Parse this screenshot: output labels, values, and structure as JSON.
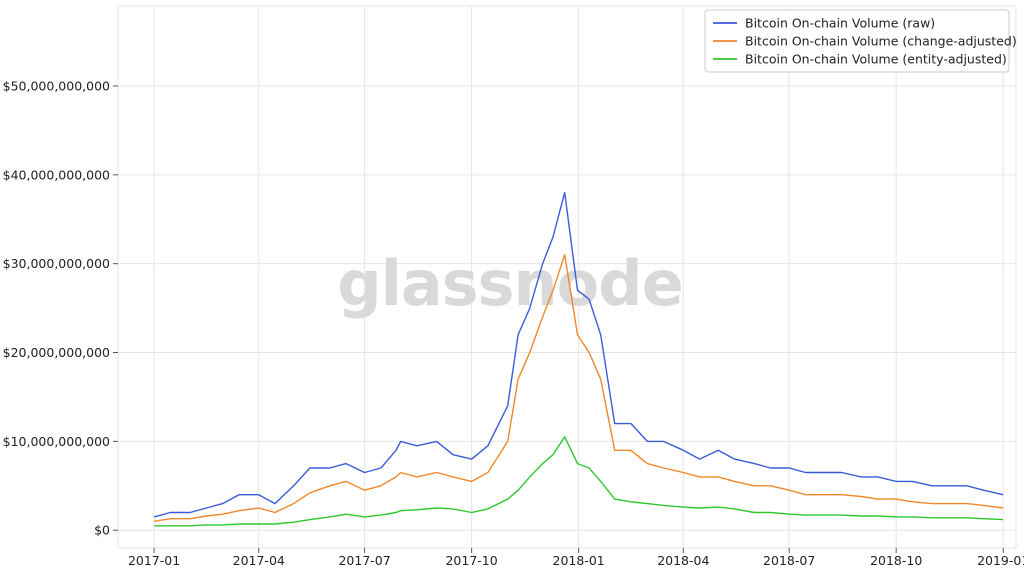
{
  "chart_data": {
    "type": "line",
    "title": "",
    "xlabel": "",
    "ylabel": "",
    "watermark": "glassnode",
    "grid": true,
    "legend_position": "top-right",
    "x_range": [
      "2016-12-01",
      "2019-01-12"
    ],
    "ylim": [
      -2000000000,
      59000000000
    ],
    "x_ticks": [
      {
        "date": "2017-01-01",
        "label": "2017-01"
      },
      {
        "date": "2017-04-01",
        "label": "2017-04"
      },
      {
        "date": "2017-07-01",
        "label": "2017-07"
      },
      {
        "date": "2017-10-01",
        "label": "2017-10"
      },
      {
        "date": "2018-01-01",
        "label": "2018-01"
      },
      {
        "date": "2018-04-01",
        "label": "2018-04"
      },
      {
        "date": "2018-07-01",
        "label": "2018-07"
      },
      {
        "date": "2018-10-01",
        "label": "2018-10"
      },
      {
        "date": "2019-01-01",
        "label": "2019-01"
      }
    ],
    "y_ticks": [
      {
        "value": 0,
        "label": "$0"
      },
      {
        "value": 10000000000,
        "label": "$10,000,000,000"
      },
      {
        "value": 20000000000,
        "label": "$20,000,000,000"
      },
      {
        "value": 30000000000,
        "label": "$30,000,000,000"
      },
      {
        "value": 40000000000,
        "label": "$40,000,000,000"
      },
      {
        "value": 50000000000,
        "label": "$50,000,000,000"
      }
    ],
    "series": [
      {
        "name": "Bitcoin On-chain Volume (raw)",
        "color": "#3b5bd9",
        "x": [
          "2017-01-01",
          "2017-01-15",
          "2017-02-01",
          "2017-02-15",
          "2017-03-01",
          "2017-03-15",
          "2017-04-01",
          "2017-04-15",
          "2017-05-01",
          "2017-05-15",
          "2017-06-01",
          "2017-06-15",
          "2017-07-01",
          "2017-07-15",
          "2017-07-28",
          "2017-08-01",
          "2017-08-15",
          "2017-09-01",
          "2017-09-15",
          "2017-10-01",
          "2017-10-15",
          "2017-11-01",
          "2017-11-10",
          "2017-11-20",
          "2017-12-01",
          "2017-12-10",
          "2017-12-20",
          "2017-12-31",
          "2018-01-10",
          "2018-01-20",
          "2018-02-01",
          "2018-02-15",
          "2018-03-01",
          "2018-03-15",
          "2018-04-01",
          "2018-04-15",
          "2018-05-01",
          "2018-05-15",
          "2018-06-01",
          "2018-06-15",
          "2018-07-01",
          "2018-07-15",
          "2018-08-01",
          "2018-08-15",
          "2018-09-01",
          "2018-09-15",
          "2018-10-01",
          "2018-10-15",
          "2018-11-01",
          "2018-11-15",
          "2018-12-01",
          "2018-12-15",
          "2019-01-01"
        ],
        "values": [
          1500000000,
          2000000000,
          2000000000,
          2500000000,
          3000000000,
          4000000000,
          4000000000,
          3000000000,
          5000000000,
          7000000000,
          7000000000,
          7500000000,
          6500000000,
          7000000000,
          9000000000,
          10000000000,
          9500000000,
          10000000000,
          8500000000,
          8000000000,
          9500000000,
          14000000000,
          22000000000,
          25000000000,
          30000000000,
          33000000000,
          38000000000,
          27000000000,
          26000000000,
          22000000000,
          12000000000,
          12000000000,
          10000000000,
          10000000000,
          9000000000,
          8000000000,
          9000000000,
          8000000000,
          7500000000,
          7000000000,
          7000000000,
          6500000000,
          6500000000,
          6500000000,
          6000000000,
          6000000000,
          5500000000,
          5500000000,
          5000000000,
          5000000000,
          5000000000,
          4500000000,
          4000000000
        ]
      },
      {
        "name": "Bitcoin On-chain Volume (change-adjusted)",
        "color": "#f0872b",
        "x": [
          "2017-01-01",
          "2017-01-15",
          "2017-02-01",
          "2017-02-15",
          "2017-03-01",
          "2017-03-15",
          "2017-04-01",
          "2017-04-15",
          "2017-05-01",
          "2017-05-15",
          "2017-06-01",
          "2017-06-15",
          "2017-07-01",
          "2017-07-15",
          "2017-07-28",
          "2017-08-01",
          "2017-08-15",
          "2017-09-01",
          "2017-09-15",
          "2017-10-01",
          "2017-10-15",
          "2017-11-01",
          "2017-11-10",
          "2017-11-20",
          "2017-12-01",
          "2017-12-10",
          "2017-12-20",
          "2017-12-31",
          "2018-01-10",
          "2018-01-20",
          "2018-02-01",
          "2018-02-15",
          "2018-03-01",
          "2018-03-15",
          "2018-04-01",
          "2018-04-15",
          "2018-05-01",
          "2018-05-15",
          "2018-06-01",
          "2018-06-15",
          "2018-07-01",
          "2018-07-15",
          "2018-08-01",
          "2018-08-15",
          "2018-09-01",
          "2018-09-15",
          "2018-10-01",
          "2018-10-15",
          "2018-11-01",
          "2018-11-15",
          "2018-12-01",
          "2018-12-15",
          "2019-01-01"
        ],
        "values": [
          1000000000,
          1300000000,
          1300000000,
          1600000000,
          1800000000,
          2200000000,
          2500000000,
          2000000000,
          3000000000,
          4200000000,
          5000000000,
          5500000000,
          4500000000,
          5000000000,
          6000000000,
          6500000000,
          6000000000,
          6500000000,
          6000000000,
          5500000000,
          6500000000,
          10000000000,
          17000000000,
          20000000000,
          24000000000,
          27000000000,
          31000000000,
          22000000000,
          20000000000,
          17000000000,
          9000000000,
          9000000000,
          7500000000,
          7000000000,
          6500000000,
          6000000000,
          6000000000,
          5500000000,
          5000000000,
          5000000000,
          4500000000,
          4000000000,
          4000000000,
          4000000000,
          3800000000,
          3500000000,
          3500000000,
          3200000000,
          3000000000,
          3000000000,
          3000000000,
          2800000000,
          2500000000
        ]
      },
      {
        "name": "Bitcoin On-chain Volume (entity-adjusted)",
        "color": "#2ec72e",
        "x": [
          "2017-01-01",
          "2017-01-15",
          "2017-02-01",
          "2017-02-15",
          "2017-03-01",
          "2017-03-15",
          "2017-04-01",
          "2017-04-15",
          "2017-05-01",
          "2017-05-15",
          "2017-06-01",
          "2017-06-15",
          "2017-07-01",
          "2017-07-15",
          "2017-07-28",
          "2017-08-01",
          "2017-08-15",
          "2017-09-01",
          "2017-09-15",
          "2017-10-01",
          "2017-10-15",
          "2017-11-01",
          "2017-11-10",
          "2017-11-20",
          "2017-12-01",
          "2017-12-10",
          "2017-12-20",
          "2017-12-31",
          "2018-01-10",
          "2018-01-20",
          "2018-02-01",
          "2018-02-15",
          "2018-03-01",
          "2018-03-15",
          "2018-04-01",
          "2018-04-15",
          "2018-05-01",
          "2018-05-15",
          "2018-06-01",
          "2018-06-15",
          "2018-07-01",
          "2018-07-15",
          "2018-08-01",
          "2018-08-15",
          "2018-09-01",
          "2018-09-15",
          "2018-10-01",
          "2018-10-15",
          "2018-11-01",
          "2018-11-15",
          "2018-12-01",
          "2018-12-15",
          "2019-01-01"
        ],
        "values": [
          500000000,
          500000000,
          500000000,
          600000000,
          600000000,
          700000000,
          700000000,
          700000000,
          900000000,
          1200000000,
          1500000000,
          1800000000,
          1500000000,
          1700000000,
          2000000000,
          2200000000,
          2300000000,
          2500000000,
          2400000000,
          2000000000,
          2400000000,
          3500000000,
          4500000000,
          6000000000,
          7500000000,
          8500000000,
          10500000000,
          7500000000,
          7000000000,
          5500000000,
          3500000000,
          3200000000,
          3000000000,
          2800000000,
          2600000000,
          2500000000,
          2600000000,
          2400000000,
          2000000000,
          2000000000,
          1800000000,
          1700000000,
          1700000000,
          1700000000,
          1600000000,
          1600000000,
          1500000000,
          1500000000,
          1400000000,
          1400000000,
          1400000000,
          1300000000,
          1200000000
        ]
      }
    ]
  }
}
